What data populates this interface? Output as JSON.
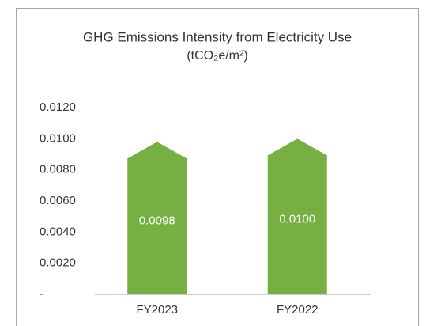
{
  "chart_data": {
    "type": "bar",
    "title": "GHG Emissions Intensity from Electricity Use",
    "subtitle": "(tCO₂e/m²)",
    "categories": [
      "FY2023",
      "FY2022"
    ],
    "values": [
      0.0098,
      0.01
    ],
    "value_labels": [
      "0.0098",
      "0.0100"
    ],
    "color": "#76b043",
    "ylim": [
      0,
      0.012
    ],
    "yticks": [
      {
        "value": 0,
        "label": "-"
      },
      {
        "value": 0.002,
        "label": "0.0020"
      },
      {
        "value": 0.004,
        "label": "0.0040"
      },
      {
        "value": 0.006,
        "label": "0.0060"
      },
      {
        "value": 0.008,
        "label": "0.0080"
      },
      {
        "value": 0.01,
        "label": "0.0100"
      },
      {
        "value": 0.012,
        "label": "0.0120"
      }
    ],
    "grid": false
  }
}
